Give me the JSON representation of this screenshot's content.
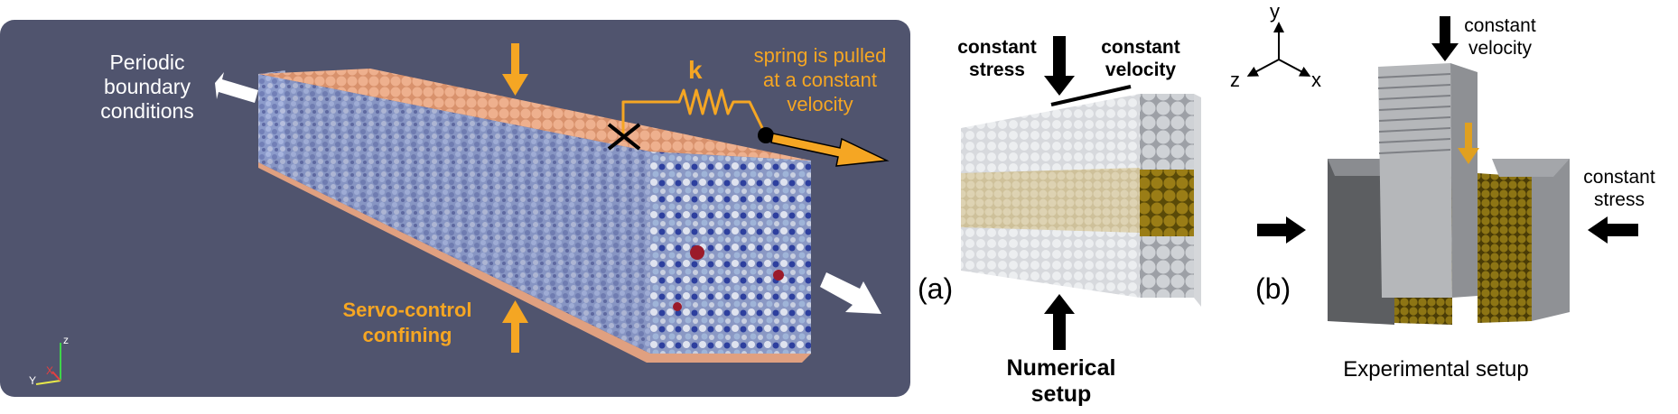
{
  "left_panel": {
    "periodic_label": [
      "Periodic",
      "boundary",
      "conditions"
    ],
    "k_label": "k",
    "spring_label": [
      "spring is pulled",
      "at a constant",
      "velocity"
    ],
    "servo_label": [
      "Servo-control",
      "confining"
    ],
    "axes": {
      "z": "z",
      "y": "Y",
      "x": "X"
    },
    "colors": {
      "background": "#50546e",
      "accent": "#f5a623",
      "top_particles": "#e9a883"
    }
  },
  "numerical_panel": {
    "constant_stress_label": [
      "constant",
      "stress"
    ],
    "constant_velocity_label": [
      "constant",
      "velocity"
    ],
    "panel_letter": "(a)",
    "caption": "Numerical setup"
  },
  "experimental_panel": {
    "axes": {
      "y": "y",
      "z": "z",
      "x": "x"
    },
    "constant_velocity_label": [
      "constant",
      "velocity"
    ],
    "constant_stress_label": [
      "constant",
      "stress"
    ],
    "panel_letter": "(b)",
    "caption": "Experimental setup"
  }
}
